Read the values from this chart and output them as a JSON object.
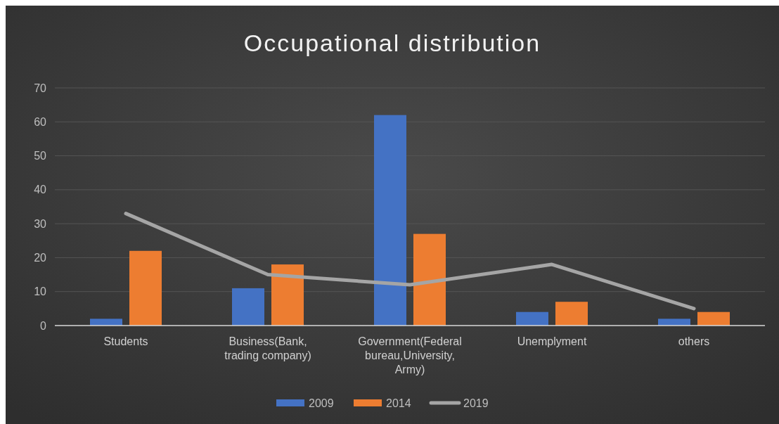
{
  "chart_data": {
    "type": "bar",
    "title": "Occupational distribution",
    "categories": [
      "Students",
      "Business(Bank, trading company)",
      "Government(Federal bureau,University, Army)",
      "Unemplyment",
      "others"
    ],
    "series": [
      {
        "name": "2009",
        "color": "#4472c4",
        "values": [
          2,
          11,
          62,
          4,
          2
        ]
      },
      {
        "name": "2014",
        "color": "#ed7d31",
        "values": [
          22,
          18,
          27,
          7,
          4
        ]
      },
      {
        "name": "2019",
        "color": "#a5a5a5",
        "type": "line",
        "values": [
          33,
          15,
          12,
          18,
          5
        ]
      }
    ],
    "ylim": [
      0,
      70
    ],
    "yticks": [
      0,
      10,
      20,
      30,
      40,
      50,
      60,
      70
    ],
    "grid": "y",
    "legend": "bottom"
  }
}
